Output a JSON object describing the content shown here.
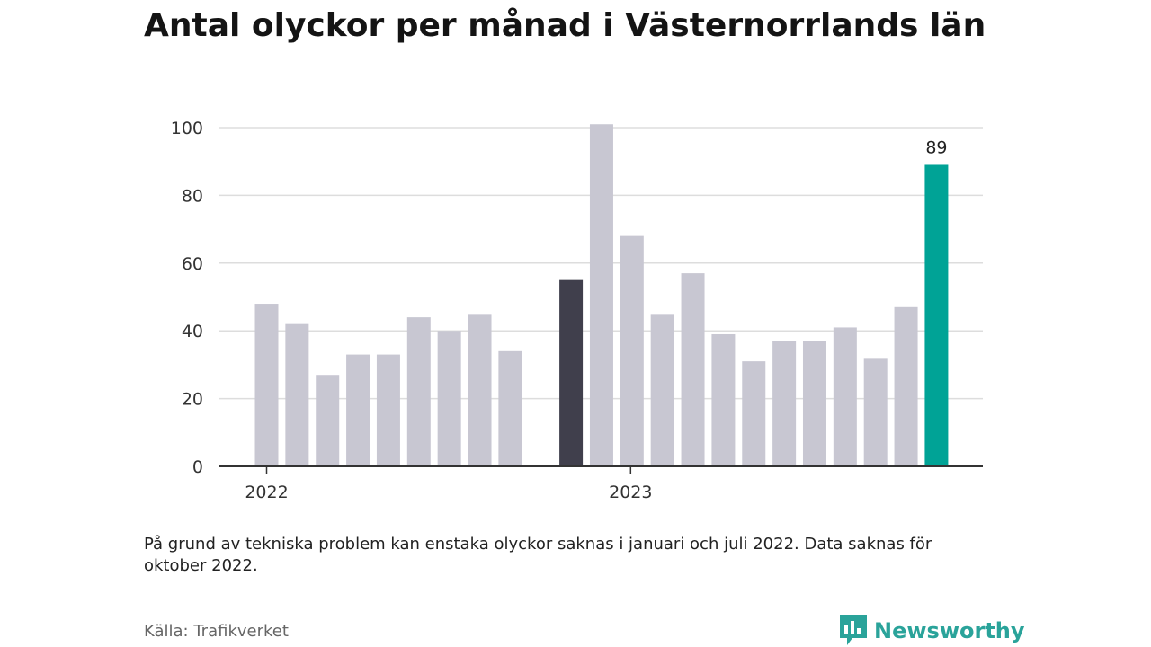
{
  "title": "Antal olyckor per månad i Västernorrlands län",
  "note": "På grund av tekniska problem kan enstaka olyckor saknas i januari och juli 2022. Data saknas för oktober 2022.",
  "source": "Källa: Trafikverket",
  "brand": {
    "name": "Newsworthy",
    "icon": "newsworthy-logo-icon",
    "color": "#2aa39a"
  },
  "chart_data": {
    "type": "bar",
    "title": "Antal olyckor per månad i Västernorrlands län",
    "xlabel": "",
    "ylabel": "",
    "ylim": [
      0,
      100
    ],
    "yticks": [
      0,
      20,
      40,
      60,
      80,
      100
    ],
    "grid": true,
    "legend": "none",
    "year_labels": [
      {
        "label": "2022",
        "at_index": 0
      },
      {
        "label": "2023",
        "at_index": 12
      }
    ],
    "colors": {
      "default": "#c8c7d2",
      "reference": "#403f4c",
      "latest": "#00a396"
    },
    "bars": [
      {
        "month": "2022-01",
        "value": 48,
        "style": "default"
      },
      {
        "month": "2022-02",
        "value": 42,
        "style": "default"
      },
      {
        "month": "2022-03",
        "value": 27,
        "style": "default"
      },
      {
        "month": "2022-04",
        "value": 33,
        "style": "default"
      },
      {
        "month": "2022-05",
        "value": 33,
        "style": "default"
      },
      {
        "month": "2022-06",
        "value": 44,
        "style": "default"
      },
      {
        "month": "2022-07",
        "value": 40,
        "style": "default"
      },
      {
        "month": "2022-08",
        "value": 45,
        "style": "default"
      },
      {
        "month": "2022-09",
        "value": 34,
        "style": "default"
      },
      {
        "month": "2022-10",
        "value": null,
        "style": "default"
      },
      {
        "month": "2022-11",
        "value": 55,
        "style": "reference"
      },
      {
        "month": "2022-12",
        "value": 101,
        "style": "default"
      },
      {
        "month": "2023-01",
        "value": 68,
        "style": "default"
      },
      {
        "month": "2023-02",
        "value": 45,
        "style": "default"
      },
      {
        "month": "2023-03",
        "value": 57,
        "style": "default"
      },
      {
        "month": "2023-04",
        "value": 39,
        "style": "default"
      },
      {
        "month": "2023-05",
        "value": 31,
        "style": "default"
      },
      {
        "month": "2023-06",
        "value": 37,
        "style": "default"
      },
      {
        "month": "2023-07",
        "value": 37,
        "style": "default"
      },
      {
        "month": "2023-08",
        "value": 41,
        "style": "default"
      },
      {
        "month": "2023-09",
        "value": 32,
        "style": "default"
      },
      {
        "month": "2023-10",
        "value": 47,
        "style": "default"
      },
      {
        "month": "2023-11",
        "value": 89,
        "style": "latest",
        "label": "89"
      }
    ]
  }
}
